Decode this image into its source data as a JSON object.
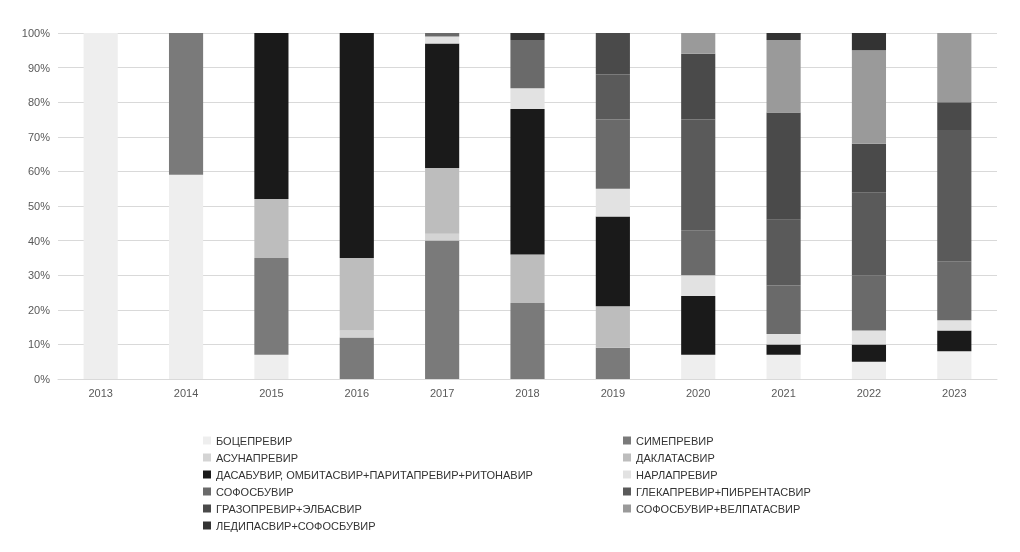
{
  "chart_data": {
    "type": "bar",
    "stacked": true,
    "categories": [
      "2013",
      "2014",
      "2015",
      "2016",
      "2017",
      "2018",
      "2019",
      "2020",
      "2021",
      "2022",
      "2023"
    ],
    "ylim": [
      0,
      100
    ],
    "yticks": [
      {
        "value": 0,
        "label": "0%"
      },
      {
        "value": 10,
        "label": "10%"
      },
      {
        "value": 20,
        "label": "20%"
      },
      {
        "value": 30,
        "label": "30%"
      },
      {
        "value": 40,
        "label": "40%"
      },
      {
        "value": 50,
        "label": "50%"
      },
      {
        "value": 60,
        "label": "60%"
      },
      {
        "value": 70,
        "label": "70%"
      },
      {
        "value": 80,
        "label": "80%"
      },
      {
        "value": 90,
        "label": "90%"
      },
      {
        "value": 100,
        "label": "100%"
      }
    ],
    "grid": "y",
    "legend": "bottom",
    "series": [
      {
        "name": "БОЦЕПРЕВИР",
        "color": "#eeeeee",
        "values": [
          100,
          59,
          7,
          null,
          null,
          null,
          null,
          7,
          7,
          5,
          8
        ]
      },
      {
        "name": "СИМЕПРЕВИР",
        "color": "#7a7a7a",
        "values": [
          null,
          41,
          28,
          12,
          40,
          22,
          9,
          null,
          null,
          null,
          null
        ]
      },
      {
        "name": "АСУНАПРЕВИР",
        "color": "#d4d4d4",
        "values": [
          null,
          null,
          null,
          2,
          2,
          null,
          null,
          null,
          null,
          null,
          null
        ]
      },
      {
        "name": "ДАКЛАТАСВИР",
        "color": "#bdbdbd",
        "values": [
          null,
          null,
          17,
          21,
          19,
          14,
          12,
          null,
          null,
          null,
          null
        ]
      },
      {
        "name": "ДАСАБУВИР, ОМБИТАСВИР+ПАРИТАПРЕВИР+РИТОНАВИР",
        "color": "#1a1a1a",
        "values": [
          null,
          null,
          48,
          65,
          36,
          42,
          26,
          17,
          3,
          5,
          6
        ]
      },
      {
        "name": "НАРЛАПРЕВИР",
        "color": "#e2e2e2",
        "values": [
          null,
          null,
          null,
          null,
          2,
          6,
          8,
          6,
          3,
          4,
          3
        ]
      },
      {
        "name": "СОФОСБУВИР",
        "color": "#6a6a6a",
        "values": [
          null,
          null,
          null,
          null,
          1,
          14,
          20,
          13,
          14,
          16,
          17
        ]
      },
      {
        "name": "ГЛЕКАПРЕВИР+ПИБРЕНТАСВИР",
        "color": "#5a5a5a",
        "values": [
          null,
          null,
          null,
          null,
          null,
          null,
          13,
          32,
          19,
          24,
          38
        ]
      },
      {
        "name": "ГРАЗОПРЕВИР+ЭЛБАСВИР",
        "color": "#4a4a4a",
        "values": [
          null,
          null,
          null,
          null,
          null,
          null,
          12,
          19,
          31,
          14,
          8
        ]
      },
      {
        "name": "СОФОСБУВИР+ВЕЛПАТАСВИР",
        "color": "#9a9a9a",
        "values": [
          null,
          null,
          null,
          null,
          null,
          null,
          null,
          6,
          21,
          27,
          20
        ]
      },
      {
        "name": "ЛЕДИПАСВИР+СОФОСБУВИР",
        "color": "#333333",
        "values": [
          null,
          null,
          null,
          null,
          null,
          2,
          null,
          null,
          2,
          5,
          null
        ]
      }
    ]
  }
}
